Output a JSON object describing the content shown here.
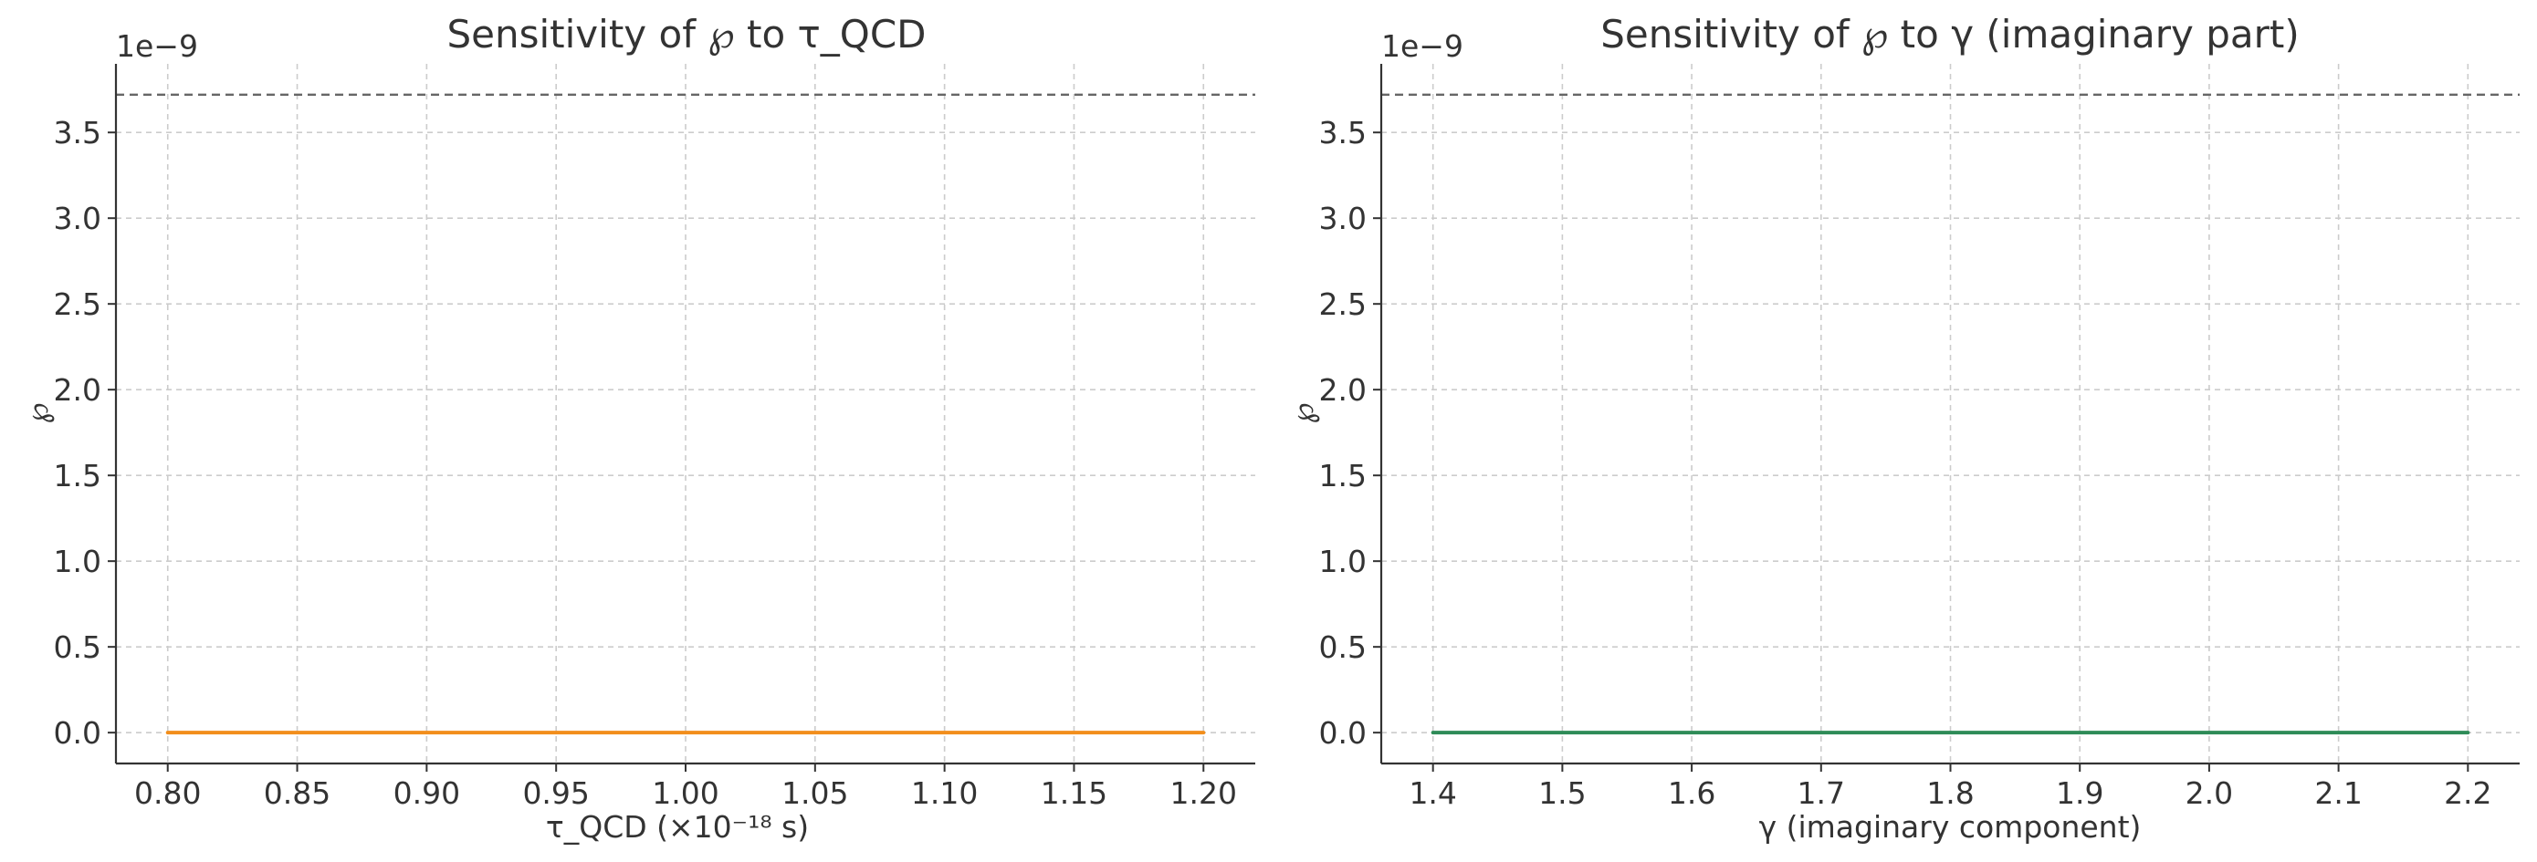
{
  "chart_data": [
    {
      "type": "line",
      "title": "Sensitivity of ℘ to τ_QCD",
      "xlabel": "τ_QCD (×10⁻¹⁸ s)",
      "ylabel": "℘",
      "y_offset_text": "1e−9",
      "x": [
        0.8,
        0.85,
        0.9,
        0.95,
        1.0,
        1.05,
        1.1,
        1.15,
        1.2
      ],
      "series": [
        {
          "values": [
            0,
            0,
            0,
            0,
            0,
            0,
            0,
            0,
            0
          ],
          "color": "#f28e1c"
        }
      ],
      "reference_line": {
        "y": 3.72e-09,
        "style": "dashed",
        "color": "#666666"
      },
      "xlim": [
        0.78,
        1.22
      ],
      "ylim": [
        -1.8e-10,
        3.9e-09
      ],
      "xticks": [
        0.8,
        0.85,
        0.9,
        0.95,
        1.0,
        1.05,
        1.1,
        1.15,
        1.2
      ],
      "xtick_labels": [
        "0.80",
        "0.85",
        "0.90",
        "0.95",
        "1.00",
        "1.05",
        "1.10",
        "1.15",
        "1.20"
      ],
      "yticks": [
        0,
        5e-10,
        1e-09,
        1.5e-09,
        2e-09,
        2.5e-09,
        3e-09,
        3.5e-09
      ],
      "ytick_labels": [
        "0.0",
        "0.5",
        "1.0",
        "1.5",
        "2.0",
        "2.5",
        "3.0",
        "3.5"
      ],
      "grid": true
    },
    {
      "type": "line",
      "title": "Sensitivity of ℘ to γ (imaginary part)",
      "xlabel": "γ (imaginary component)",
      "ylabel": "℘",
      "y_offset_text": "1e−9",
      "x": [
        1.4,
        1.5,
        1.6,
        1.7,
        1.8,
        1.9,
        2.0,
        2.1,
        2.2
      ],
      "series": [
        {
          "values": [
            0,
            0,
            0,
            0,
            0,
            0,
            0,
            0,
            0
          ],
          "color": "#2e8b57"
        }
      ],
      "reference_line": {
        "y": 3.72e-09,
        "style": "dashed",
        "color": "#666666"
      },
      "xlim": [
        1.36,
        2.24
      ],
      "ylim": [
        -1.8e-10,
        3.9e-09
      ],
      "xticks": [
        1.4,
        1.5,
        1.6,
        1.7,
        1.8,
        1.9,
        2.0,
        2.1,
        2.2
      ],
      "xtick_labels": [
        "1.4",
        "1.5",
        "1.6",
        "1.7",
        "1.8",
        "1.9",
        "2.0",
        "2.1",
        "2.2"
      ],
      "yticks": [
        0,
        5e-10,
        1e-09,
        1.5e-09,
        2e-09,
        2.5e-09,
        3e-09,
        3.5e-09
      ],
      "ytick_labels": [
        "0.0",
        "0.5",
        "1.0",
        "1.5",
        "2.0",
        "2.5",
        "3.0",
        "3.5"
      ],
      "grid": true
    }
  ]
}
